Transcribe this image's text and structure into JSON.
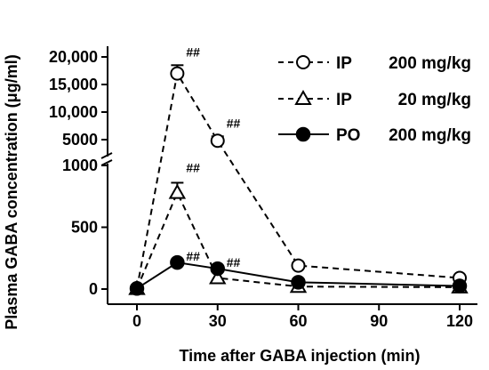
{
  "chart_data": {
    "type": "line",
    "xlabel": "Time after GABA injection (min)",
    "ylabel": "Plasma GABA concentration (μg/ml)",
    "xlim": [
      -5,
      128
    ],
    "x_ticks": [
      0,
      30,
      60,
      90,
      120
    ],
    "y_axis": {
      "broken": true,
      "lower_segment": {
        "range": [
          0,
          1000
        ],
        "ticks": [
          0,
          500,
          1000
        ]
      },
      "upper_segment": {
        "range": [
          5000,
          20000
        ],
        "ticks": [
          5000,
          10000,
          15000,
          20000
        ]
      },
      "tick_labels": {
        "0": "0",
        "500": "500",
        "1000": "1000",
        "5000": "5000",
        "10000": "10,000",
        "15000": "15,000",
        "20000": "20,000"
      }
    },
    "series": [
      {
        "name": "IP 200 mg/kg",
        "route": "IP",
        "dose": "200 mg/kg",
        "marker": "open-circle",
        "line": "dashed",
        "x": [
          0,
          15,
          30,
          60,
          120
        ],
        "values": [
          5,
          17000,
          4800,
          190,
          90
        ],
        "error_upper": [
          null,
          18500,
          5600,
          null,
          null
        ],
        "annotations": [
          null,
          "##",
          "##",
          null,
          null
        ]
      },
      {
        "name": "IP 20 mg/kg",
        "route": "IP",
        "dose": "20 mg/kg",
        "marker": "open-triangle",
        "line": "dashed",
        "x": [
          0,
          15,
          30,
          60,
          120
        ],
        "values": [
          3,
          780,
          90,
          20,
          15
        ],
        "error_upper": [
          null,
          860,
          null,
          null,
          null
        ],
        "annotations": [
          null,
          "##",
          null,
          null,
          null
        ]
      },
      {
        "name": "PO 200 mg/kg",
        "route": "PO",
        "dose": "200 mg/kg",
        "marker": "filled-circle",
        "line": "solid",
        "x": [
          0,
          15,
          30,
          60,
          120
        ],
        "values": [
          5,
          215,
          165,
          55,
          25
        ],
        "error_upper": [
          null,
          null,
          null,
          null,
          null
        ],
        "annotations": [
          null,
          "##",
          "##",
          null,
          null
        ]
      }
    ],
    "legend_position": "top-right"
  }
}
